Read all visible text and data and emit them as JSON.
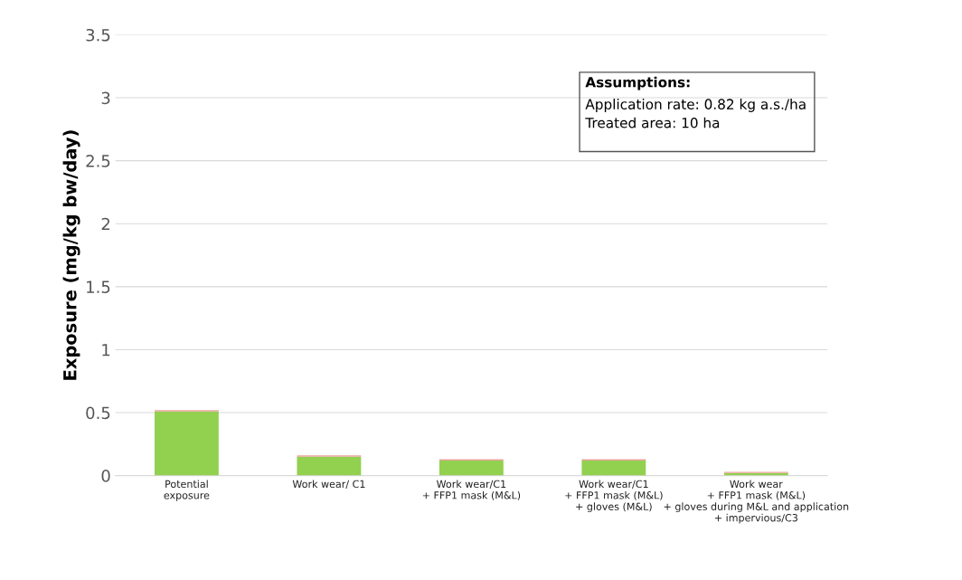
{
  "chart_data": {
    "type": "bar",
    "ylabel": "Exposure (mg/kg bw/day)",
    "categories": [
      "Potential\nexposure",
      "Work wear/ C1",
      "Work wear/C1\n+ FFP1 mask (M&L)",
      "Work wear/C1\n+ FFP1 mask (M&L)\n+ gloves (M&L)",
      "Work wear\n+ FFP1 mask (M&L)\n+ gloves during M&L and application\n+ impervious/C3"
    ],
    "stacked": true,
    "series": [
      {
        "color": "#92d050",
        "values": [
          0.51,
          0.15,
          0.12,
          0.12,
          0.02
        ]
      },
      {
        "color": "#e8a49c",
        "values": [
          0.01,
          0.01,
          0.01,
          0.01,
          0.01
        ]
      }
    ],
    "ylim": [
      0,
      3.5
    ],
    "yticks": [
      0,
      0.5,
      1,
      1.5,
      2,
      2.5,
      3,
      3.5
    ],
    "grid": "y",
    "legend": false,
    "annotations": [
      "Assumptions:",
      "Application rate: 0.82 kg a.s./ha",
      "Treated area: 10 ha"
    ]
  }
}
